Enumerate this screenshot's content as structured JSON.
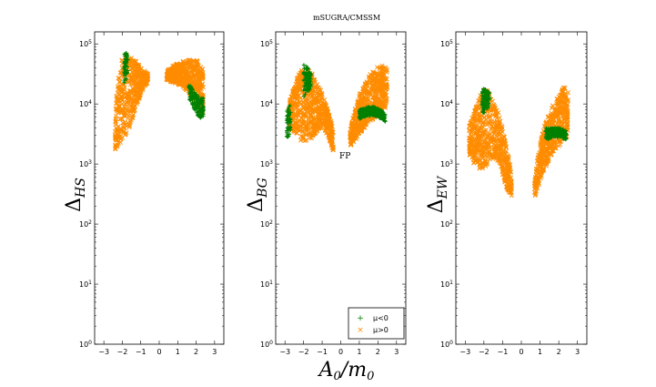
{
  "chart_data": {
    "type": "scatter",
    "title": "mSUGRA/CMSSM",
    "xlabel_main": "A",
    "xlabel_sub0": "0",
    "xlabel_sep": "/m",
    "xlabel_sub1": "0",
    "xlim": [
      -3.5,
      3.5
    ],
    "ylim_log10": [
      0,
      5.2
    ],
    "xticks": [
      "−3",
      "−2",
      "−1",
      "0",
      "1",
      "2",
      "3"
    ],
    "ytick_base": "10",
    "ytick_exps": [
      "0",
      "1",
      "2",
      "3",
      "4",
      "5"
    ],
    "series_colors": {
      "mu_neg": "#008000",
      "mu_pos": "#FF8C00"
    },
    "legend": {
      "placement": "lower-right of middle panel",
      "entries": [
        "μ<0",
        "μ>0"
      ]
    },
    "panels": [
      {
        "ylabel": "Δ",
        "ylabel_sub": "HS",
        "bands": [
          {
            "series": "mu_pos",
            "x": [
              -2.4,
              -2.2,
              -2.0,
              -1.8,
              -1.6,
              -1.4,
              -1.2,
              -1.0,
              -0.8,
              -0.6
            ],
            "lo": [
              3.2,
              3.3,
              3.4,
              3.5,
              3.6,
              3.8,
              4.0,
              4.15,
              4.3,
              4.35
            ],
            "hi": [
              3.9,
              4.5,
              4.8,
              4.85,
              4.8,
              4.75,
              4.7,
              4.6,
              4.55,
              4.5
            ]
          },
          {
            "series": "mu_pos",
            "x": [
              0.4,
              0.8,
              1.2,
              1.6,
              2.0,
              2.4
            ],
            "lo": [
              4.4,
              4.35,
              4.3,
              4.2,
              4.0,
              3.85
            ],
            "hi": [
              4.55,
              4.65,
              4.7,
              4.75,
              4.75,
              4.6
            ]
          },
          {
            "series": "mu_neg",
            "x": [
              -1.9,
              -1.8,
              -1.7
            ],
            "lo": [
              4.35,
              4.4,
              4.5
            ],
            "hi": [
              4.85,
              4.85,
              4.8
            ]
          },
          {
            "series": "mu_neg",
            "x": [
              1.6,
              1.9,
              2.2,
              2.4
            ],
            "lo": [
              4.1,
              3.9,
              3.75,
              3.8
            ],
            "hi": [
              4.35,
              4.2,
              4.1,
              4.1
            ]
          }
        ]
      },
      {
        "ylabel": "Δ",
        "ylabel_sub": "BG",
        "annotation": "FP",
        "bands": [
          {
            "series": "mu_pos",
            "x": [
              -2.8,
              -2.5,
              -2.2,
              -2.0,
              -1.8,
              -1.6,
              -1.4,
              -1.2,
              -1.0,
              -0.8,
              -0.6,
              -0.4
            ],
            "lo": [
              3.6,
              3.5,
              3.4,
              3.35,
              3.35,
              3.4,
              3.5,
              3.55,
              3.6,
              3.5,
              3.4,
              3.2
            ],
            "hi": [
              4.05,
              4.3,
              4.55,
              4.6,
              4.6,
              4.55,
              4.4,
              4.3,
              4.2,
              4.0,
              3.8,
              3.6
            ]
          },
          {
            "series": "mu_pos",
            "x": [
              0.5,
              0.8,
              1.0,
              1.3,
              1.6,
              1.9,
              2.2,
              2.5
            ],
            "lo": [
              3.3,
              3.4,
              3.5,
              3.6,
              3.7,
              3.8,
              3.9,
              3.95
            ],
            "hi": [
              3.6,
              3.95,
              4.15,
              4.35,
              4.5,
              4.6,
              4.65,
              4.6
            ]
          },
          {
            "series": "mu_neg",
            "x": [
              -2.0,
              -1.8,
              -1.6
            ],
            "lo": [
              4.1,
              4.2,
              4.25
            ],
            "hi": [
              4.65,
              4.62,
              4.55
            ]
          },
          {
            "series": "mu_neg",
            "x": [
              1.0,
              1.4,
              1.8,
              2.2,
              2.4
            ],
            "lo": [
              3.75,
              3.8,
              3.8,
              3.75,
              3.7
            ],
            "hi": [
              3.9,
              3.95,
              3.95,
              3.9,
              3.85
            ]
          },
          {
            "series": "mu_neg",
            "x": [
              -2.9,
              -2.7
            ],
            "lo": [
              3.4,
              3.5
            ],
            "hi": [
              3.9,
              4.0
            ]
          }
        ]
      },
      {
        "ylabel": "Δ",
        "ylabel_sub": "EW",
        "bands": [
          {
            "series": "mu_pos",
            "x": [
              -2.8,
              -2.5,
              -2.2,
              -2.0,
              -1.8,
              -1.6,
              -1.4,
              -1.2,
              -1.0,
              -0.8,
              -0.6,
              -0.5
            ],
            "lo": [
              3.1,
              3.0,
              2.9,
              2.9,
              3.0,
              3.1,
              3.1,
              3.0,
              2.8,
              2.6,
              2.5,
              2.45
            ],
            "hi": [
              3.65,
              3.9,
              4.15,
              4.25,
              4.25,
              4.15,
              4.0,
              3.85,
              3.6,
              3.3,
              3.0,
              2.7
            ]
          },
          {
            "series": "mu_pos",
            "x": [
              0.7,
              0.9,
              1.1,
              1.4,
              1.7,
              2.0,
              2.3,
              2.5
            ],
            "lo": [
              2.45,
              2.6,
              2.8,
              3.0,
              3.2,
              3.3,
              3.4,
              3.45
            ],
            "hi": [
              2.7,
              3.2,
              3.5,
              3.8,
              4.0,
              4.15,
              4.3,
              4.2
            ]
          },
          {
            "series": "mu_neg",
            "x": [
              -2.1,
              -1.9,
              -1.7
            ],
            "lo": [
              3.8,
              3.9,
              3.95
            ],
            "hi": [
              4.25,
              4.25,
              4.2
            ]
          },
          {
            "series": "mu_neg",
            "x": [
              1.3,
              1.7,
              2.1,
              2.4
            ],
            "lo": [
              3.4,
              3.45,
              3.45,
              3.4
            ],
            "hi": [
              3.6,
              3.6,
              3.6,
              3.55
            ]
          }
        ]
      }
    ]
  }
}
